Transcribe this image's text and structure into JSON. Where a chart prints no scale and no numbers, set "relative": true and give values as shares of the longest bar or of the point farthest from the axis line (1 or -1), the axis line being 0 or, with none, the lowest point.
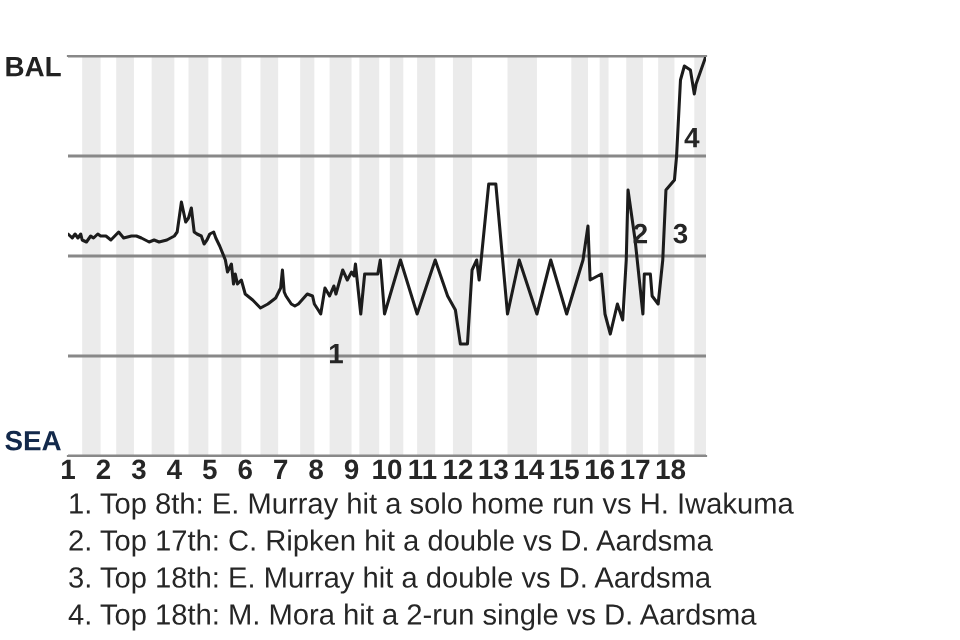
{
  "chart_data": {
    "type": "line",
    "relative": true,
    "x": [
      1.0,
      1.12,
      1.2,
      1.28,
      1.36,
      1.4,
      1.52,
      1.64,
      1.72,
      1.84,
      1.92,
      2.07,
      2.21,
      2.43,
      2.57,
      2.79,
      2.93,
      3.07,
      3.29,
      3.43,
      3.57,
      3.79,
      4.0,
      4.08,
      4.2,
      4.32,
      4.4,
      4.48,
      4.56,
      4.64,
      4.76,
      4.84,
      4.92,
      5.0,
      5.11,
      5.17,
      5.28,
      5.44,
      5.5,
      5.61,
      5.67,
      5.72,
      5.78,
      5.89,
      6.0,
      6.21,
      6.43,
      6.64,
      6.86,
      7.0,
      7.05,
      7.1,
      7.15,
      7.3,
      7.4,
      7.5,
      7.6,
      7.75,
      7.9,
      7.95,
      8.06,
      8.13,
      8.25,
      8.38,
      8.5,
      8.56,
      8.75,
      8.88,
      9.0,
      9.07,
      9.11,
      9.26,
      9.37,
      9.74,
      9.81,
      9.93,
      10.38,
      10.85,
      11.36,
      11.71,
      11.93,
      12.07,
      12.27,
      12.4,
      12.53,
      12.6,
      12.87,
      13.07,
      13.4,
      13.73,
      14.23,
      14.62,
      15.07,
      15.53,
      15.67,
      15.73,
      16.05,
      16.15,
      16.3,
      16.5,
      16.65,
      16.75,
      16.8,
      17.0,
      17.22,
      17.26,
      17.43,
      17.48,
      17.65,
      17.78,
      17.87,
      18.11,
      18.17,
      18.28,
      18.39,
      18.56,
      18.67,
      18.72,
      19.0
    ],
    "series": [
      {
        "color": "#1c1c1c",
        "values": [
          0.555,
          0.545,
          0.555,
          0.545,
          0.555,
          0.54,
          0.535,
          0.55,
          0.545,
          0.555,
          0.55,
          0.55,
          0.54,
          0.56,
          0.545,
          0.55,
          0.55,
          0.545,
          0.535,
          0.54,
          0.535,
          0.54,
          0.55,
          0.56,
          0.635,
          0.585,
          0.595,
          0.62,
          0.56,
          0.555,
          0.55,
          0.53,
          0.54,
          0.555,
          0.56,
          0.545,
          0.525,
          0.49,
          0.46,
          0.48,
          0.43,
          0.455,
          0.43,
          0.44,
          0.405,
          0.39,
          0.37,
          0.38,
          0.395,
          0.42,
          0.465,
          0.41,
          0.4,
          0.38,
          0.375,
          0.38,
          0.39,
          0.405,
          0.4,
          0.38,
          0.365,
          0.355,
          0.42,
          0.4,
          0.425,
          0.405,
          0.465,
          0.44,
          0.46,
          0.45,
          0.48,
          0.355,
          0.455,
          0.455,
          0.49,
          0.355,
          0.49,
          0.355,
          0.49,
          0.4,
          0.365,
          0.28,
          0.28,
          0.465,
          0.49,
          0.44,
          0.68,
          0.68,
          0.355,
          0.49,
          0.355,
          0.49,
          0.355,
          0.49,
          0.575,
          0.44,
          0.455,
          0.355,
          0.305,
          0.38,
          0.34,
          0.49,
          0.665,
          0.54,
          0.355,
          0.455,
          0.455,
          0.4,
          0.38,
          0.49,
          0.665,
          0.69,
          0.75,
          0.94,
          0.975,
          0.965,
          0.905,
          0.93,
          1.0
        ]
      }
    ],
    "xlim": [
      1,
      19
    ],
    "xticks": [
      1,
      2,
      3,
      4,
      5,
      6,
      7,
      8,
      9,
      10,
      11,
      12,
      13,
      14,
      15,
      16,
      17,
      18
    ],
    "grid": "y",
    "bands": [
      {
        "axis": "x",
        "from": 1.4,
        "to": 1.92,
        "color": "#ebebeb"
      },
      {
        "axis": "x",
        "from": 2.36,
        "to": 2.86,
        "color": "#ebebeb"
      },
      {
        "axis": "x",
        "from": 3.36,
        "to": 4.0,
        "color": "#ebebeb"
      },
      {
        "axis": "x",
        "from": 4.4,
        "to": 4.96,
        "color": "#ebebeb"
      },
      {
        "axis": "x",
        "from": 5.33,
        "to": 5.89,
        "color": "#ebebeb"
      },
      {
        "axis": "x",
        "from": 6.43,
        "to": 6.93,
        "color": "#ebebeb"
      },
      {
        "axis": "x",
        "from": 7.55,
        "to": 7.95,
        "color": "#ebebeb"
      },
      {
        "axis": "x",
        "from": 8.38,
        "to": 9.0,
        "color": "#ebebeb"
      },
      {
        "axis": "x",
        "from": 9.22,
        "to": 9.78,
        "color": "#ebebeb"
      },
      {
        "axis": "x",
        "from": 10.08,
        "to": 10.46,
        "color": "#ebebeb"
      },
      {
        "axis": "x",
        "from": 10.85,
        "to": 11.36,
        "color": "#ebebeb"
      },
      {
        "axis": "x",
        "from": 11.86,
        "to": 12.4,
        "color": "#ebebeb"
      },
      {
        "axis": "x",
        "from": 13.4,
        "to": 14.23,
        "color": "#ebebeb"
      },
      {
        "axis": "x",
        "from": 15.2,
        "to": 15.67,
        "color": "#ebebeb"
      },
      {
        "axis": "x",
        "from": 16.0,
        "to": 16.25,
        "color": "#ebebeb"
      },
      {
        "axis": "x",
        "from": 16.75,
        "to": 17.22,
        "color": "#ebebeb"
      },
      {
        "axis": "x",
        "from": 17.65,
        "to": 18.11,
        "color": "#ebebeb"
      },
      {
        "axis": "x",
        "from": 18.67,
        "to": 19.0,
        "color": "#ebebeb"
      }
    ],
    "annotations": [
      {
        "text": "1",
        "x": 8.56,
        "y": 0.25
      },
      {
        "text": "2",
        "x": 17.15,
        "y": 0.55
      },
      {
        "text": "3",
        "x": 18.28,
        "y": 0.55
      },
      {
        "text": "4",
        "x": 18.6,
        "y": 0.79
      },
      "BAL",
      "SEA",
      "1. Top 8th: E. Murray hit a solo home run vs H. Iwakuma",
      "2. Top 17th: C. Ripken hit a double vs D. Aardsma",
      "3. Top 18th: E. Murray hit a double vs D. Aardsma",
      "4. Top 18th: M. Mora hit a 2-run single vs D. Aardsma"
    ]
  }
}
